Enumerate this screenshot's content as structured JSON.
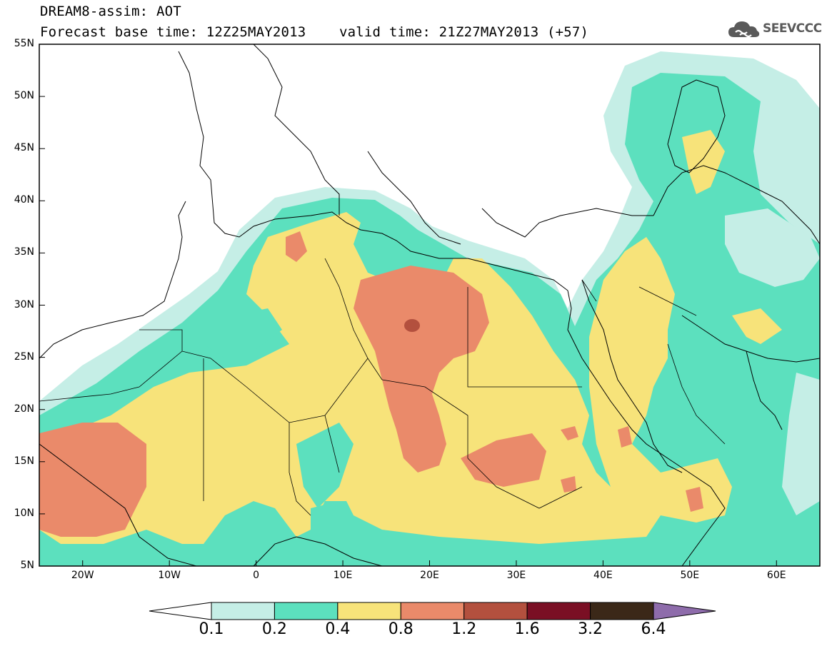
{
  "header": {
    "title_line1": "DREAM8-assim: AOT",
    "title_line2": "Forecast base time: 12Z25MAY2013    valid time: 21Z27MAY2013 (+57)"
  },
  "logo": {
    "text": "SEEVCCC",
    "icon": "cloud-icon"
  },
  "map": {
    "lat_range": [
      5,
      55
    ],
    "lon_range": [
      -25,
      65
    ],
    "lat_labels": [
      "55N",
      "50N",
      "45N",
      "40N",
      "35N",
      "30N",
      "25N",
      "20N",
      "15N",
      "10N",
      "5N"
    ],
    "lon_labels": [
      "20W",
      "10W",
      "0",
      "10E",
      "20E",
      "30E",
      "40E",
      "50E",
      "60E"
    ]
  },
  "legend": {
    "thresholds": [
      "0.1",
      "0.2",
      "0.4",
      "0.8",
      "1.2",
      "1.6",
      "3.2",
      "6.4"
    ],
    "colors": [
      "#ffffff",
      "#c5eee6",
      "#5ce0be",
      "#f7e37a",
      "#ea8a6a",
      "#b3503e",
      "#7a0f24",
      "#3b2818",
      "#8e6cab"
    ]
  }
}
